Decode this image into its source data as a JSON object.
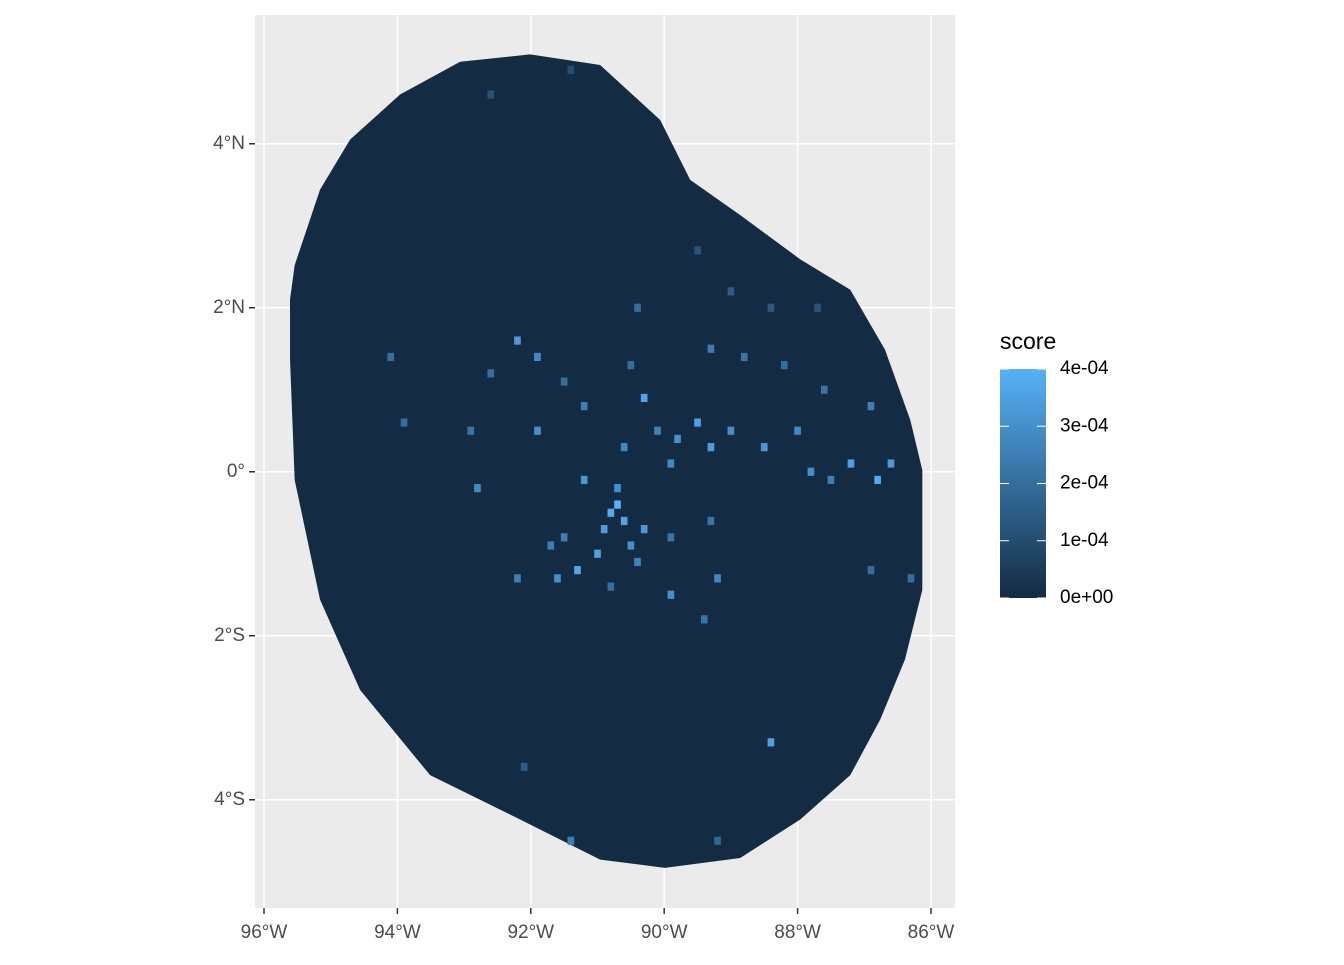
{
  "chart_data": {
    "type": "raster-map",
    "legend_title": "score",
    "xlim": [
      -96.135,
      -85.64
    ],
    "ylim": [
      -5.32,
      5.57
    ],
    "xticks": [
      {
        "value": -96,
        "label": "96°W"
      },
      {
        "value": -94,
        "label": "94°W"
      },
      {
        "value": -92,
        "label": "92°W"
      },
      {
        "value": -90,
        "label": "90°W"
      },
      {
        "value": -88,
        "label": "88°W"
      },
      {
        "value": -86,
        "label": "86°W"
      }
    ],
    "yticks": [
      {
        "value": 4,
        "label": "4°N"
      },
      {
        "value": 2,
        "label": "2°N"
      },
      {
        "value": 0,
        "label": "0°"
      },
      {
        "value": -2,
        "label": "2°S"
      },
      {
        "value": -4,
        "label": "4°S"
      }
    ],
    "score_lim": [
      0,
      0.0004
    ],
    "score_ticks": [
      {
        "value": 0,
        "label": "0e+00"
      },
      {
        "value": 0.0001,
        "label": "1e-04"
      },
      {
        "value": 0.0002,
        "label": "2e-04"
      },
      {
        "value": 0.0003,
        "label": "3e-04"
      },
      {
        "value": 0.0004,
        "label": "4e-04"
      }
    ],
    "low_color": "#132B43",
    "high_color": "#56B1F7",
    "grid": true,
    "outline": {
      "x": [
        -95.61,
        -95.54,
        -95.16,
        -94.71,
        -93.96,
        -93.06,
        -92.01,
        -90.96,
        -90.06,
        -89.61,
        -88.86,
        -87.96,
        -87.21,
        -86.69,
        -86.31,
        -86.13,
        -86.13,
        -86.39,
        -86.76,
        -87.21,
        -87.96,
        -88.86,
        -89.99,
        -90.96,
        -92.16,
        -93.51,
        -94.56,
        -95.16,
        -95.54,
        -95.61
      ],
      "y": [
        2.1,
        2.52,
        3.44,
        4.05,
        4.6,
        5.0,
        5.09,
        4.96,
        4.29,
        3.56,
        3.13,
        2.59,
        2.22,
        1.49,
        0.63,
        0.02,
        -1.44,
        -2.29,
        -3.02,
        -3.7,
        -4.24,
        -4.71,
        -4.83,
        -4.73,
        -4.24,
        -3.7,
        -2.66,
        -1.56,
        -0.1,
        1.37
      ]
    },
    "cells": {
      "x": [
        -90.8,
        -90.7,
        -90.6,
        -90.9,
        -90.5,
        -91.0,
        -91.3,
        -91.5,
        -90.7,
        -90.6,
        -90.4,
        -91.2,
        -90.3,
        -91.6,
        -90.8,
        -89.8,
        -89.5,
        -89.9,
        -89.3,
        -89.0,
        -88.5,
        -88.0,
        -87.8,
        -87.2,
        -86.8,
        -86.6,
        -87.5,
        -90.3,
        -90.1,
        -88.8,
        -89.3,
        -88.2,
        -87.6,
        -89.0,
        -88.4,
        -89.5,
        -87.7,
        -90.4,
        -90.5,
        -86.9,
        -92.2,
        -91.9,
        -92.6,
        -91.5,
        -94.1,
        -93.9,
        -92.9,
        -91.9,
        -91.2,
        -92.8,
        -91.7,
        -89.9,
        -89.3,
        -89.2,
        -89.9,
        -89.4,
        -88.4,
        -91.4,
        -89.2,
        -92.1,
        -86.9,
        -86.3,
        -92.6,
        -91.4,
        -92.2
      ],
      "y": [
        -0.5,
        -0.4,
        -0.6,
        -0.7,
        -0.9,
        -1.0,
        -1.2,
        -0.8,
        -0.2,
        0.3,
        -1.1,
        -0.1,
        -0.7,
        -1.3,
        -1.4,
        0.4,
        0.6,
        0.1,
        0.3,
        0.5,
        0.3,
        0.5,
        0.0,
        0.1,
        -0.1,
        0.1,
        -0.1,
        0.9,
        0.5,
        1.4,
        1.5,
        1.3,
        1.0,
        2.2,
        2.0,
        2.7,
        2.0,
        2.0,
        1.3,
        0.8,
        1.6,
        1.4,
        1.2,
        1.1,
        1.4,
        0.6,
        0.5,
        0.5,
        0.8,
        -0.2,
        -0.9,
        -0.8,
        -0.6,
        -1.3,
        -1.5,
        -1.8,
        -3.3,
        -4.5,
        -4.5,
        -3.6,
        -1.2,
        -1.3,
        4.6,
        4.9,
        -1.3
      ],
      "values": [
        0.00038,
        0.0004,
        0.00036,
        0.00034,
        0.0003,
        0.00035,
        0.00037,
        0.00025,
        0.0003,
        0.00028,
        0.00026,
        0.00032,
        0.00033,
        0.0003,
        0.0002,
        0.0003,
        0.00035,
        0.00028,
        0.00034,
        0.0003,
        0.00032,
        0.00028,
        0.0003,
        0.00035,
        0.00038,
        0.00033,
        0.00025,
        0.00036,
        0.00026,
        0.00022,
        0.00024,
        0.0002,
        0.00022,
        0.00015,
        0.00014,
        0.00012,
        0.00012,
        0.0002,
        0.0002,
        0.00025,
        0.00033,
        0.00028,
        0.0002,
        0.0002,
        0.0002,
        0.0002,
        0.00022,
        0.0003,
        0.00025,
        0.00028,
        0.00025,
        0.00022,
        0.00022,
        0.00028,
        0.0003,
        0.00022,
        0.00035,
        0.00025,
        0.00018,
        0.00015,
        0.0002,
        0.0002,
        0.00012,
        0.0001,
        0.00025
      ]
    }
  }
}
